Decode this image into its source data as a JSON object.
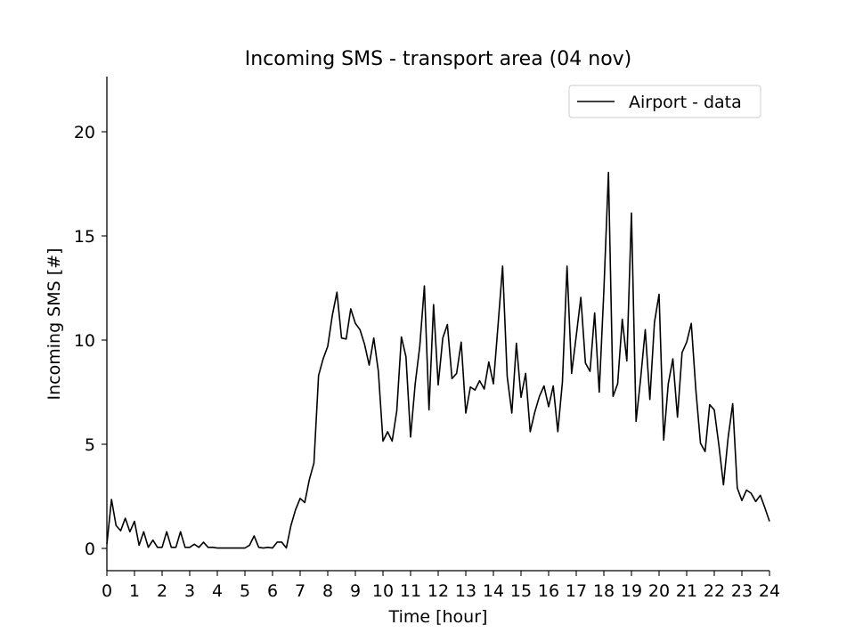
{
  "chart_data": {
    "type": "line",
    "title": "Incoming SMS - transport area (04 nov)",
    "xlabel": "Time [hour]",
    "ylabel": "Incoming SMS [#]",
    "xlim": [
      0,
      24
    ],
    "ylim": [
      -1,
      22.7
    ],
    "xticks": [
      "0",
      "1",
      "2",
      "3",
      "4",
      "5",
      "6",
      "7",
      "8",
      "9",
      "10",
      "11",
      "12",
      "13",
      "14",
      "15",
      "16",
      "17",
      "18",
      "19",
      "20",
      "21",
      "22",
      "23",
      "24"
    ],
    "yticks": [
      "0",
      "5",
      "10",
      "15",
      "20"
    ],
    "grid": false,
    "legend": {
      "position": "top-right",
      "entries": [
        "Airport - data"
      ]
    },
    "series": [
      {
        "name": "Airport - data",
        "color": "#000000",
        "x": [
          0,
          0.167,
          0.333,
          0.5,
          0.667,
          0.833,
          1,
          1.167,
          1.333,
          1.5,
          1.667,
          1.833,
          2,
          2.167,
          2.333,
          2.5,
          2.667,
          2.833,
          3,
          3.167,
          3.333,
          3.5,
          3.667,
          3.833,
          4,
          4.167,
          4.333,
          4.5,
          4.667,
          4.833,
          5,
          5.167,
          5.333,
          5.5,
          5.667,
          5.833,
          6,
          6.167,
          6.333,
          6.5,
          6.667,
          6.833,
          7,
          7.167,
          7.333,
          7.5,
          7.667,
          7.833,
          8,
          8.167,
          8.333,
          8.5,
          8.667,
          8.833,
          9,
          9.167,
          9.333,
          9.5,
          9.667,
          9.833,
          10,
          10.167,
          10.333,
          10.5,
          10.667,
          10.833,
          11,
          11.167,
          11.333,
          11.5,
          11.667,
          11.833,
          12,
          12.167,
          12.333,
          12.5,
          12.667,
          12.833,
          13,
          13.167,
          13.333,
          13.5,
          13.667,
          13.833,
          14,
          14.167,
          14.333,
          14.5,
          14.667,
          14.833,
          15,
          15.167,
          15.333,
          15.5,
          15.667,
          15.833,
          16,
          16.167,
          16.333,
          16.5,
          16.667,
          16.833,
          17,
          17.167,
          17.333,
          17.5,
          17.667,
          17.833,
          18,
          18.167,
          18.333,
          18.5,
          18.667,
          18.833,
          19,
          19.167,
          19.333,
          19.5,
          19.667,
          19.833,
          20,
          20.167,
          20.333,
          20.5,
          20.667,
          20.833,
          21,
          21.167,
          21.333,
          21.5,
          21.667,
          21.833,
          22,
          22.167,
          22.333,
          22.5,
          22.667,
          22.833,
          23,
          23.167,
          23.333,
          23.5,
          23.667,
          23.833,
          24
        ],
        "y": [
          0.2,
          2.35,
          1.1,
          0.85,
          1.45,
          0.8,
          1.3,
          0.15,
          0.8,
          0.05,
          0.4,
          0.05,
          0.05,
          0.8,
          0.05,
          0.05,
          0.8,
          0.05,
          0.05,
          0.2,
          0.05,
          0.3,
          0.05,
          0.05,
          0.02,
          0.02,
          0.02,
          0.02,
          0.02,
          0.02,
          0.02,
          0.15,
          0.6,
          0.05,
          0.02,
          0.05,
          0.02,
          0.3,
          0.3,
          0.02,
          1.1,
          1.85,
          2.4,
          2.2,
          3.3,
          4.1,
          8.3,
          9.1,
          9.7,
          11.2,
          12.3,
          10.1,
          10.05,
          11.5,
          10.8,
          10.5,
          9.8,
          8.8,
          10.1,
          8.5,
          5.15,
          5.6,
          5.15,
          6.6,
          10.15,
          9.2,
          5.35,
          7.9,
          9.7,
          12.6,
          6.65,
          11.7,
          7.85,
          10.1,
          10.75,
          8.15,
          8.4,
          9.9,
          6.5,
          7.75,
          7.6,
          8.05,
          7.65,
          8.95,
          7.9,
          10.7,
          13.55,
          8.25,
          6.5,
          9.85,
          7.25,
          8.4,
          5.6,
          6.55,
          7.3,
          7.8,
          6.8,
          7.8,
          5.6,
          8.0,
          13.55,
          8.4,
          10.2,
          12.05,
          8.9,
          8.5,
          11.3,
          7.5,
          12.35,
          18.05,
          7.3,
          7.9,
          11.0,
          9.0,
          16.1,
          6.1,
          8.15,
          10.5,
          7.15,
          10.85,
          12.2,
          5.2,
          7.9,
          9.1,
          6.3,
          9.4,
          9.9,
          10.8,
          7.6,
          5.05,
          4.65,
          6.9,
          6.65,
          4.95,
          3.05,
          5.3,
          6.95,
          2.9,
          2.3,
          2.8,
          2.65,
          2.25,
          2.55,
          1.95,
          1.3
        ]
      }
    ]
  }
}
